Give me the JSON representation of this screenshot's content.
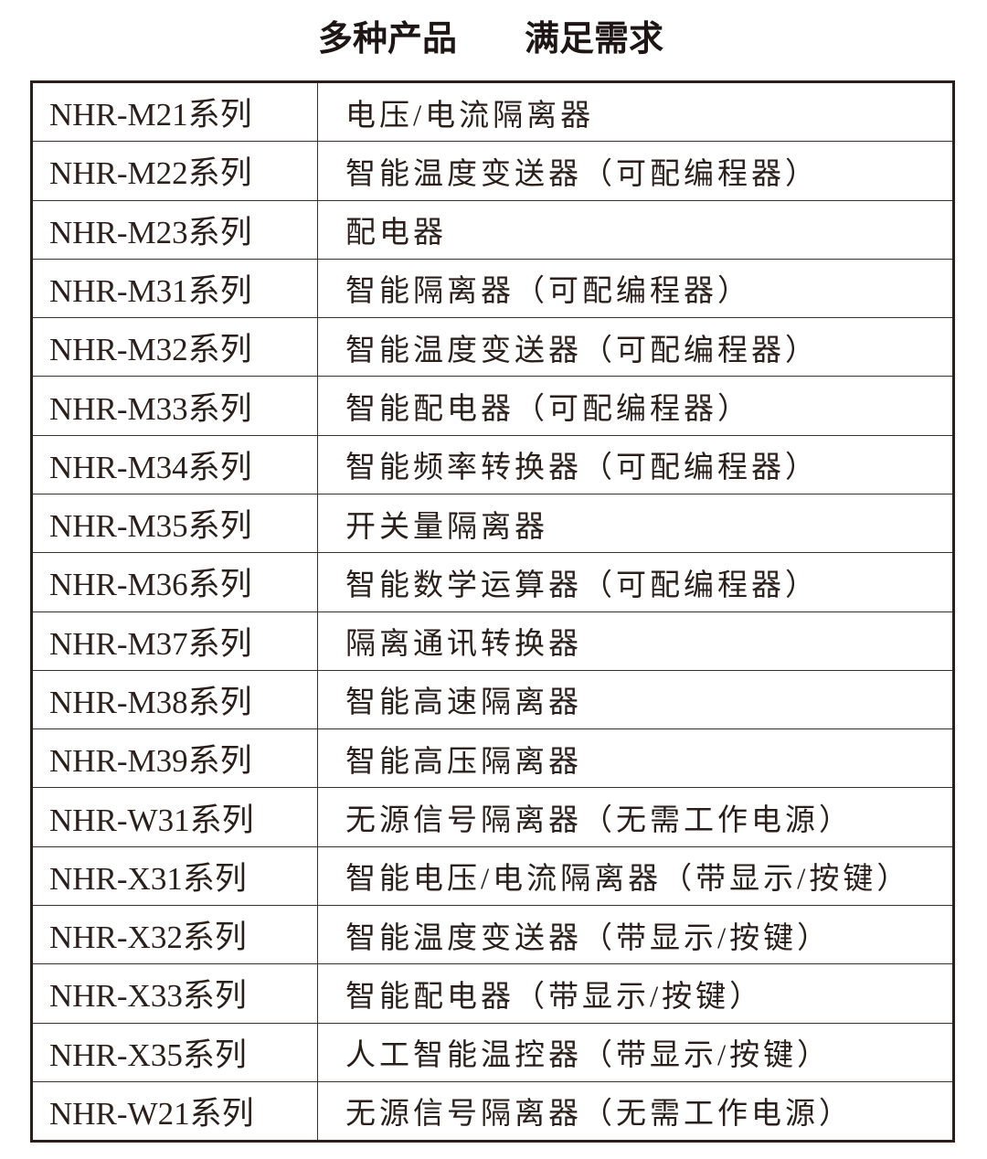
{
  "header": {
    "title": [
      "多种产品",
      "满足需求"
    ]
  },
  "table": {
    "rows": [
      [
        "NHR-M21系列",
        "电压/电流隔离器"
      ],
      [
        "NHR-M22系列",
        "智能温度变送器（可配编程器）"
      ],
      [
        "NHR-M23系列",
        "配电器"
      ],
      [
        "NHR-M31系列",
        "智能隔离器（可配编程器）"
      ],
      [
        "NHR-M32系列",
        "智能温度变送器（可配编程器）"
      ],
      [
        "NHR-M33系列",
        "智能配电器（可配编程器）"
      ],
      [
        "NHR-M34系列",
        "智能频率转换器（可配编程器）"
      ],
      [
        "NHR-M35系列",
        "开关量隔离器"
      ],
      [
        "NHR-M36系列",
        "智能数学运算器（可配编程器）"
      ],
      [
        "NHR-M37系列",
        "隔离通讯转换器"
      ],
      [
        "NHR-M38系列",
        "智能高速隔离器"
      ],
      [
        "NHR-M39系列",
        "智能高压隔离器"
      ],
      [
        "NHR-W31系列",
        "无源信号隔离器（无需工作电源）"
      ],
      [
        "NHR-X31系列",
        "智能电压/电流隔离器（带显示/按键）"
      ],
      [
        "NHR-X32系列",
        "智能温度变送器（带显示/按键）"
      ],
      [
        "NHR-X33系列",
        "智能配电器（带显示/按键）"
      ],
      [
        "NHR-X35系列",
        "人工智能温控器（带显示/按键）"
      ],
      [
        "NHR-W21系列",
        "无源信号隔离器（无需工作电源）"
      ]
    ]
  }
}
